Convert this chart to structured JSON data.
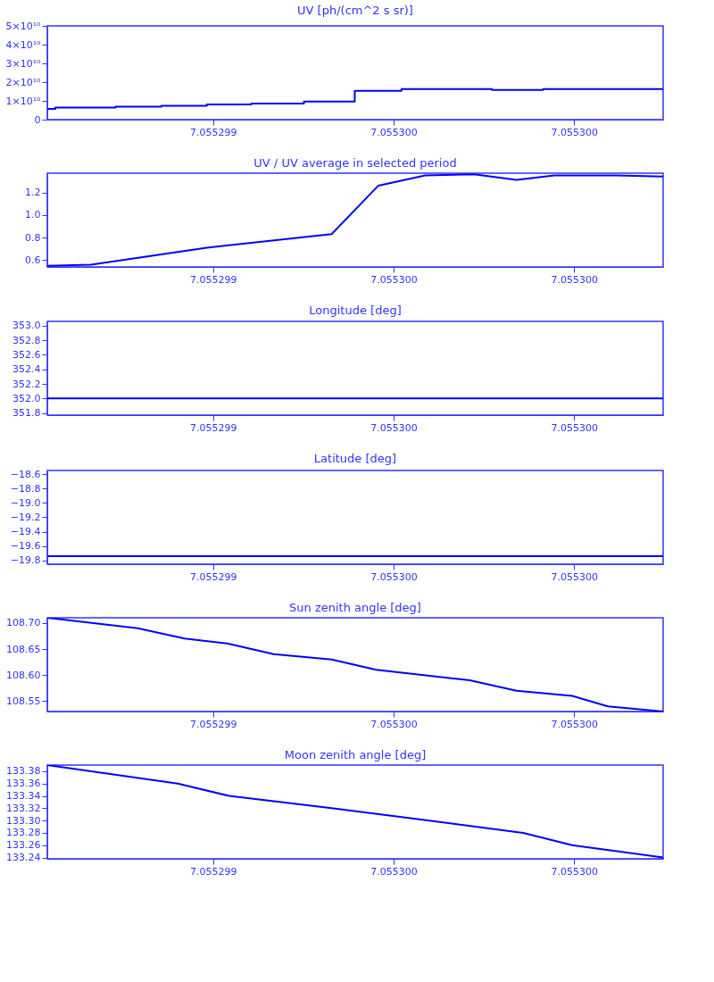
{
  "chart_data": [
    {
      "type": "step",
      "title": "UV [ph/(cm^2 s sr)]",
      "xlim": [
        7.0552985408,
        7.0553002469
      ],
      "xticks": [
        {
          "value": 7.055299,
          "label": "7.055299"
        },
        {
          "value": 7.0552995,
          "label": "7.055300"
        },
        {
          "value": 7.0553,
          "label": "7.055300"
        }
      ],
      "ylim": [
        0,
        50000000000
      ],
      "yticks": [
        {
          "value": 0,
          "label": "0"
        },
        {
          "value": 10000000000,
          "label": "1×10¹⁰"
        },
        {
          "value": 20000000000,
          "label": "2×10¹⁰"
        },
        {
          "value": 30000000000,
          "label": "3×10¹⁰"
        },
        {
          "value": 40000000000,
          "label": "4×10¹⁰"
        },
        {
          "value": 50000000000,
          "label": "5×10¹⁰"
        }
      ],
      "grid": false,
      "series": [
        {
          "color": "#0000ff",
          "x": [
            7.0552985408,
            7.055298563,
            7.0552987296,
            7.0552988568,
            7.0552989827,
            7.0552991062,
            7.0552992518,
            7.0552993926,
            7.0552995222,
            7.0552997728,
            7.0552999148,
            7.0553002469
          ],
          "values": [
            5700000000,
            6400000000,
            6900000000,
            7400000000,
            8100000000,
            8600000000,
            9600000000,
            15300000000,
            16300000000,
            15800000000,
            16300000000,
            16300000000
          ]
        }
      ]
    },
    {
      "type": "line",
      "title": "UV / UV average in selected period",
      "xlim": [
        7.0552985408,
        7.0553002469
      ],
      "xticks": [
        {
          "value": 7.055299,
          "label": "7.055299"
        },
        {
          "value": 7.0552995,
          "label": "7.055300"
        },
        {
          "value": 7.0553,
          "label": "7.055300"
        }
      ],
      "ylim": [
        0.54,
        1.37
      ],
      "yticks": [
        {
          "value": 0.6,
          "label": "0.6"
        },
        {
          "value": 0.8,
          "label": "0.8"
        },
        {
          "value": 1.0,
          "label": "1.0"
        },
        {
          "value": 1.2,
          "label": "1.2"
        }
      ],
      "grid": false,
      "series": [
        {
          "color": "#0000ff",
          "x": [
            7.0552985408,
            7.0552986617,
            7.0552989827,
            7.0552993284,
            7.055299458,
            7.0552995876,
            7.0552997234,
            7.0552998407,
            7.0552999456,
            7.0553001185,
            7.0553002469
          ],
          "values": [
            0.55,
            0.56,
            0.71,
            0.83,
            1.26,
            1.35,
            1.36,
            1.31,
            1.35,
            1.35,
            1.34
          ]
        }
      ]
    },
    {
      "type": "line",
      "title": "Longitude [deg]",
      "xlim": [
        7.0552985408,
        7.0553002469
      ],
      "xticks": [
        {
          "value": 7.055299,
          "label": "7.055299"
        },
        {
          "value": 7.0552995,
          "label": "7.055300"
        },
        {
          "value": 7.0553,
          "label": "7.055300"
        }
      ],
      "ylim": [
        351.77,
        353.06
      ],
      "yticks": [
        {
          "value": 351.8,
          "label": "351.8"
        },
        {
          "value": 352.0,
          "label": "352.0"
        },
        {
          "value": 352.2,
          "label": "352.2"
        },
        {
          "value": 352.4,
          "label": "352.4"
        },
        {
          "value": 352.6,
          "label": "352.6"
        },
        {
          "value": 352.8,
          "label": "352.8"
        },
        {
          "value": 353.0,
          "label": "353.0"
        }
      ],
      "grid": false,
      "series": [
        {
          "color": "#0000ff",
          "x": [
            7.0552985408,
            7.0553002469
          ],
          "values": [
            352.0,
            352.0
          ]
        }
      ]
    },
    {
      "type": "line",
      "title": "Latitude [deg]",
      "xlim": [
        7.0552985408,
        7.0553002469
      ],
      "xticks": [
        {
          "value": 7.055299,
          "label": "7.055299"
        },
        {
          "value": 7.0552995,
          "label": "7.055300"
        },
        {
          "value": 7.0553,
          "label": "7.055300"
        }
      ],
      "ylim": [
        -19.85,
        -18.55
      ],
      "yticks": [
        {
          "value": -19.8,
          "label": "−19.8"
        },
        {
          "value": -19.6,
          "label": "−19.6"
        },
        {
          "value": -19.4,
          "label": "−19.4"
        },
        {
          "value": -19.2,
          "label": "−19.2"
        },
        {
          "value": -19.0,
          "label": "−19.0"
        },
        {
          "value": -18.8,
          "label": "−18.8"
        },
        {
          "value": -18.6,
          "label": "−18.6"
        }
      ],
      "grid": false,
      "series": [
        {
          "color": "#0000ff",
          "x": [
            7.0552985408,
            7.0553002469
          ],
          "values": [
            -19.74,
            -19.74
          ]
        }
      ]
    },
    {
      "type": "line",
      "title": "Sun zenith angle [deg]",
      "xlim": [
        7.0552985408,
        7.0553002469
      ],
      "xticks": [
        {
          "value": 7.055299,
          "label": "7.055299"
        },
        {
          "value": 7.0552995,
          "label": "7.055300"
        },
        {
          "value": 7.0553,
          "label": "7.055300"
        }
      ],
      "ylim": [
        108.53,
        108.71
      ],
      "yticks": [
        {
          "value": 108.55,
          "label": "108.55"
        },
        {
          "value": 108.6,
          "label": "108.60"
        },
        {
          "value": 108.65,
          "label": "108.65"
        },
        {
          "value": 108.7,
          "label": "108.70"
        }
      ],
      "grid": false,
      "series": [
        {
          "color": "#0000ff",
          "x": [
            7.0552985408,
            7.0552987914,
            7.055298921,
            7.0552990444,
            7.0552991679,
            7.0552993284,
            7.0552994518,
            7.0552997111,
            7.0552998407,
            7.055299995,
            7.0553000938,
            7.0553002469
          ],
          "values": [
            108.71,
            108.69,
            108.67,
            108.66,
            108.64,
            108.63,
            108.61,
            108.59,
            108.57,
            108.56,
            108.54,
            108.53
          ]
        }
      ]
    },
    {
      "type": "line",
      "title": "Moon zenith angle [deg]",
      "xlim": [
        7.0552985408,
        7.0553002469
      ],
      "xticks": [
        {
          "value": 7.055299,
          "label": "7.055299"
        },
        {
          "value": 7.0552995,
          "label": "7.055300"
        },
        {
          "value": 7.0553,
          "label": "7.055300"
        }
      ],
      "ylim": [
        133.238,
        133.39
      ],
      "yticks": [
        {
          "value": 133.24,
          "label": "133.24"
        },
        {
          "value": 133.26,
          "label": "133.26"
        },
        {
          "value": 133.28,
          "label": "133.28"
        },
        {
          "value": 133.3,
          "label": "133.30"
        },
        {
          "value": 133.32,
          "label": "133.32"
        },
        {
          "value": 133.34,
          "label": "133.34"
        },
        {
          "value": 133.36,
          "label": "133.36"
        },
        {
          "value": 133.38,
          "label": "133.38"
        }
      ],
      "grid": false,
      "series": [
        {
          "color": "#0000ff",
          "x": [
            7.0552985408,
            7.0552989025,
            7.0552990444,
            7.0552993284,
            7.0552996,
            7.0552998592,
            7.055299995,
            7.0553002469
          ],
          "values": [
            133.39,
            133.36,
            133.34,
            133.32,
            133.3,
            133.28,
            133.26,
            133.24
          ]
        }
      ]
    }
  ]
}
